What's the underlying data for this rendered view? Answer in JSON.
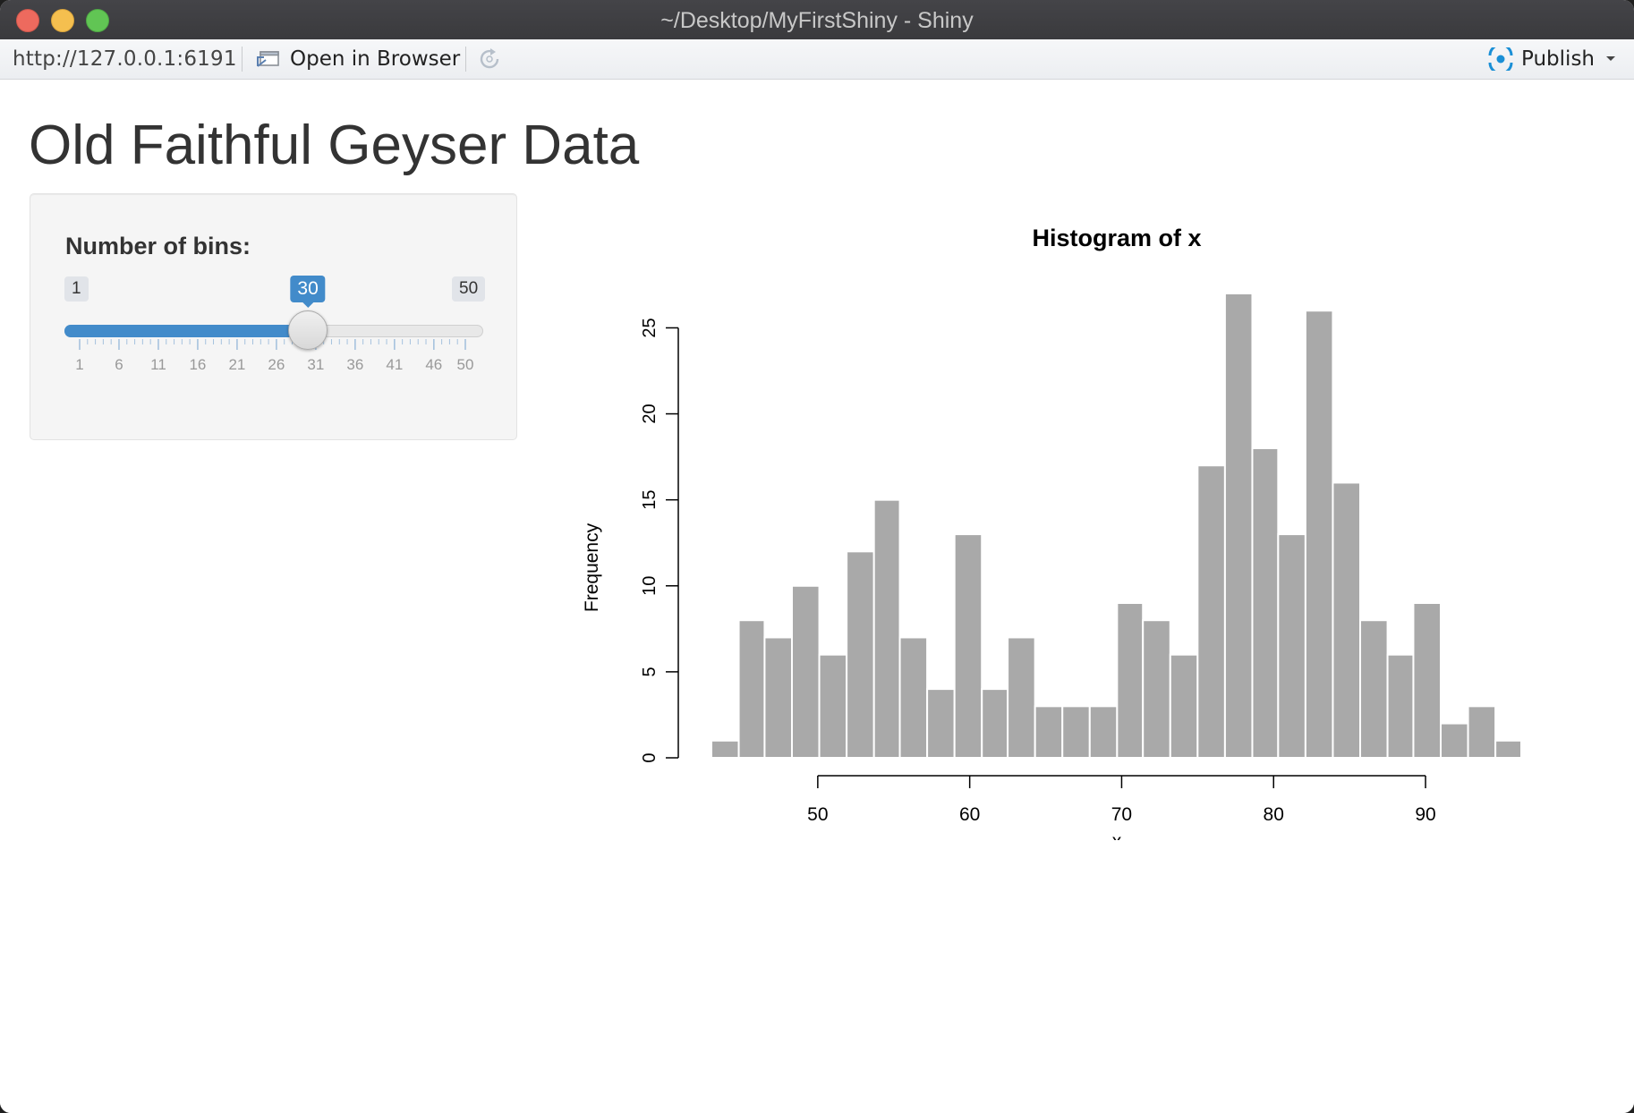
{
  "window": {
    "title": "~/Desktop/MyFirstShiny - Shiny"
  },
  "toolbar": {
    "url": "http://127.0.0.1:6191",
    "open_in_browser": "Open in Browser",
    "publish": "Publish",
    "icons": [
      "open-in-browser-icon",
      "refresh-icon",
      "publish-icon",
      "dropdown-caret-icon"
    ],
    "publish_color": "#1a8fd6"
  },
  "page": {
    "title": "Old Faithful Geyser Data"
  },
  "sidebar": {
    "slider": {
      "label": "Number of bins:",
      "min": 1,
      "max": 50,
      "value": 30,
      "min_label": "1",
      "max_label": "50",
      "value_label": "30",
      "tick_labels": [
        "1",
        "6",
        "11",
        "16",
        "21",
        "26",
        "31",
        "36",
        "41",
        "46",
        "50"
      ],
      "accent": "#428bca"
    }
  },
  "chart_data": {
    "type": "bar",
    "title": "Histogram of x",
    "xlabel": "x",
    "ylabel": "Frequency",
    "bin_edges": [
      43,
      44.8,
      46.5,
      48.3,
      50.1,
      51.9,
      53.7,
      55.4,
      57.2,
      59.0,
      60.8,
      62.5,
      64.3,
      66.1,
      67.9,
      69.7,
      71.4,
      73.2,
      75.0,
      76.8,
      78.6,
      80.3,
      82.1,
      83.9,
      85.7,
      87.5,
      89.2,
      91.0,
      92.8,
      94.6,
      96.3
    ],
    "values": [
      1,
      8,
      7,
      10,
      6,
      12,
      15,
      7,
      4,
      13,
      4,
      7,
      3,
      3,
      3,
      9,
      8,
      6,
      17,
      27,
      18,
      13,
      26,
      16,
      8,
      6,
      9,
      2,
      3,
      1
    ],
    "x_ticks": [
      50,
      60,
      70,
      80,
      90
    ],
    "x_tick_labels": [
      "50",
      "60",
      "70",
      "80",
      "90"
    ],
    "y_ticks": [
      0,
      5,
      10,
      15,
      20,
      25
    ],
    "y_tick_labels": [
      "0",
      "5",
      "10",
      "15",
      "20",
      "25"
    ],
    "xlim": [
      43,
      96.3
    ],
    "ylim": [
      0,
      27
    ],
    "bar_color": "#a9a9a9",
    "grid": false
  }
}
